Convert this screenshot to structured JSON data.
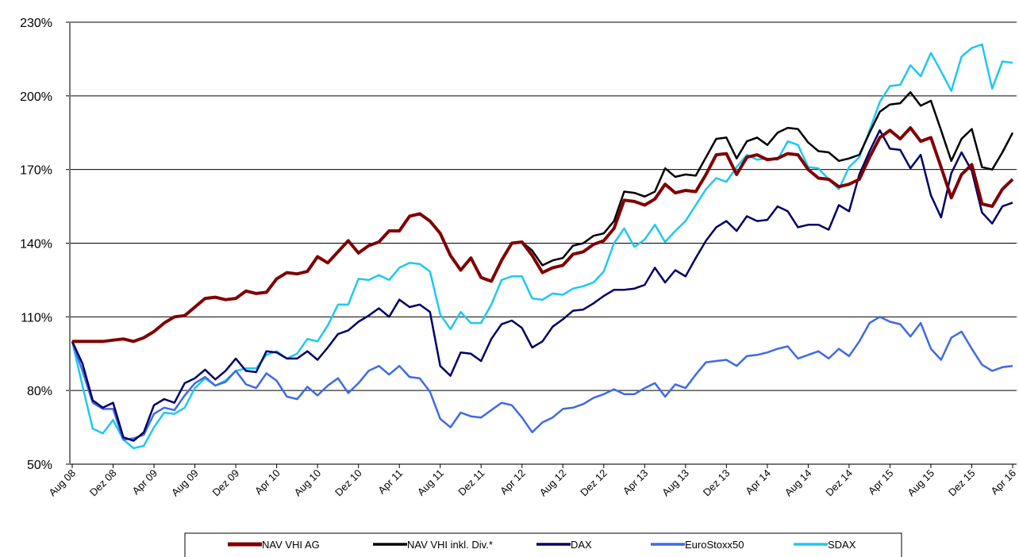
{
  "chart_data": {
    "type": "line",
    "grid": true,
    "legend": "bottom",
    "categories": [
      "Aug 08",
      null,
      null,
      null,
      "Dez 08",
      null,
      null,
      null,
      "Apr 09",
      null,
      null,
      null,
      "Aug 09",
      null,
      null,
      null,
      "Dez 09",
      null,
      null,
      null,
      "Apr 10",
      null,
      null,
      null,
      "Aug 10",
      null,
      null,
      null,
      "Dez 10",
      null,
      null,
      null,
      "Apr 11",
      null,
      null,
      null,
      "Aug 11",
      null,
      null,
      null,
      "Dez 11",
      null,
      null,
      null,
      "Apr 12",
      null,
      null,
      null,
      "Aug 12",
      null,
      null,
      null,
      "Dez 12",
      null,
      null,
      null,
      "Apr 13",
      null,
      null,
      null,
      "Aug 13",
      null,
      null,
      null,
      "Dez 13",
      null,
      null,
      null,
      "Apr 14",
      null,
      null,
      null,
      "Aug 14",
      null,
      null,
      null,
      "Dez 14",
      null,
      null,
      null,
      "Apr 15",
      null,
      null,
      null,
      "Aug 15",
      null,
      null,
      null,
      "Dez 15",
      null,
      null,
      null,
      "Apr 16"
    ],
    "ylim": [
      50,
      230
    ],
    "yticks": [
      {
        "value": 50,
        "label": "50%"
      },
      {
        "value": 80,
        "label": "80%"
      },
      {
        "value": 110,
        "label": "110%"
      },
      {
        "value": 140,
        "label": "140%"
      },
      {
        "value": 170,
        "label": "170%"
      },
      {
        "value": 200,
        "label": "200%"
      },
      {
        "value": 230,
        "label": "230%"
      }
    ],
    "series": [
      {
        "name": "NAV VHI AG",
        "color": "#800000",
        "width": 4,
        "values": [
          100,
          100,
          100,
          100,
          100.5,
          101,
          100,
          101.5,
          104,
          107.5,
          110,
          110.5,
          114,
          117.5,
          118,
          117,
          117.5,
          120.5,
          119.5,
          120,
          125.5,
          128,
          127.5,
          128.5,
          134.5,
          132,
          136.5,
          141,
          136,
          139,
          140.5,
          145,
          145,
          151,
          152,
          149,
          144,
          135,
          129,
          134,
          126,
          124.5,
          133,
          140,
          140.5,
          135,
          128,
          130,
          131,
          135.5,
          136.5,
          139.5,
          141,
          146,
          157.5,
          157,
          155.5,
          158,
          164,
          160.5,
          161.5,
          161,
          168,
          176,
          176.5,
          168,
          175,
          176,
          174,
          174.5,
          176.5,
          176,
          170,
          166.5,
          166,
          163,
          164,
          166,
          175,
          183,
          186,
          182.5,
          187,
          181.5,
          183,
          171,
          158.5,
          168,
          172,
          156,
          155,
          162,
          166
        ]
      },
      {
        "name": "NAV VHI inkl. Div.*",
        "color": "#000000",
        "width": 2.5,
        "values": [
          100,
          100,
          100,
          100,
          100.5,
          101,
          100,
          101.5,
          104,
          107.5,
          110,
          110.5,
          114,
          117.5,
          118,
          117,
          117.5,
          120.5,
          119.5,
          120,
          125.5,
          128,
          127.5,
          128.5,
          134.5,
          132,
          136.5,
          141,
          136,
          139,
          140.5,
          145,
          145,
          151,
          152,
          149,
          144,
          135,
          129,
          134,
          126,
          124.5,
          133,
          140,
          140.5,
          137,
          131,
          133,
          134,
          139,
          140,
          143,
          144,
          149,
          161,
          160.5,
          159,
          161,
          170.5,
          167,
          168,
          167.5,
          175,
          182.5,
          183,
          174.5,
          181.5,
          183,
          180,
          185,
          187,
          186.5,
          181,
          177.5,
          177,
          173.5,
          174.5,
          176,
          185,
          193.5,
          196.5,
          197,
          201.5,
          196,
          198,
          186,
          173.5,
          182.5,
          186.5,
          171,
          170,
          177,
          185
        ]
      },
      {
        "name": "DAX",
        "color": "#000066",
        "width": 2.5,
        "values": [
          100,
          91,
          76,
          73,
          75,
          61,
          59.5,
          63,
          74,
          76.5,
          75,
          83,
          85,
          88.5,
          84.5,
          88,
          93,
          88,
          87.5,
          96,
          95.5,
          93,
          93,
          96,
          92.5,
          97.5,
          103,
          104.5,
          108,
          110.5,
          113.5,
          110,
          117,
          114,
          115,
          112,
          90,
          86,
          95.5,
          95,
          92,
          101,
          107,
          108.5,
          105.5,
          97.5,
          100,
          106,
          109,
          112.5,
          113,
          115.5,
          118.5,
          121,
          121,
          121.5,
          123,
          130,
          124,
          129,
          126.5,
          134,
          141,
          146.5,
          149,
          145,
          151,
          149,
          149.5,
          155,
          153,
          146.5,
          147.5,
          147.5,
          145.5,
          155.5,
          153,
          168,
          177.5,
          186,
          178.5,
          178,
          170.5,
          176,
          159.5,
          150.5,
          168.5,
          177,
          169.5,
          152.5,
          148,
          155,
          156.5
        ]
      },
      {
        "name": "EuroStoxx50",
        "color": "#3f6ae3",
        "width": 2.5,
        "values": [
          100,
          88,
          75,
          72.5,
          72.5,
          60,
          60.5,
          62,
          70.5,
          73,
          72,
          78,
          83,
          85.5,
          82,
          83.5,
          88,
          82.5,
          81,
          87,
          84,
          77.5,
          76.5,
          81.5,
          78,
          82,
          85,
          79,
          83,
          88,
          90,
          86.5,
          90,
          85.5,
          85,
          79.5,
          68.5,
          65,
          71,
          69.5,
          69,
          72,
          75,
          74,
          69,
          63,
          67,
          69,
          72.5,
          73,
          74.5,
          77,
          78.5,
          80.5,
          78.5,
          78.5,
          81,
          83,
          77.5,
          82.5,
          81,
          86.5,
          91.5,
          92,
          92.5,
          90,
          94,
          94.5,
          95.5,
          97,
          98,
          93,
          94.5,
          96,
          93,
          97,
          94,
          100,
          107.5,
          110,
          108,
          107,
          102,
          107.5,
          97,
          92.5,
          101.5,
          104,
          97,
          90.5,
          88,
          89.5,
          90
        ]
      },
      {
        "name": "SDAX",
        "color": "#1ec8f0",
        "width": 2.5,
        "values": [
          100,
          82,
          64.5,
          62.5,
          68,
          60,
          56.5,
          57.5,
          65,
          71,
          70.5,
          73,
          81,
          85,
          82,
          84,
          88,
          89,
          89,
          94.5,
          96,
          93,
          95,
          101,
          100,
          106.5,
          115,
          115,
          125.5,
          125,
          127,
          125,
          130,
          132,
          131.5,
          128.5,
          111,
          105,
          112,
          107.5,
          107.5,
          115,
          125,
          126.5,
          126.5,
          117.5,
          117,
          119.5,
          119,
          121.5,
          122.5,
          124,
          128.5,
          140,
          146,
          138.5,
          141.5,
          147.5,
          140.5,
          145,
          149,
          155.5,
          162,
          166.5,
          165,
          171,
          176,
          174,
          174.5,
          174,
          181.5,
          180,
          171,
          170.5,
          166,
          162,
          171,
          175,
          186,
          197.5,
          204,
          204.5,
          212.5,
          208,
          217.5,
          210,
          202,
          216,
          219.5,
          221,
          203,
          214,
          213.5
        ]
      }
    ]
  }
}
